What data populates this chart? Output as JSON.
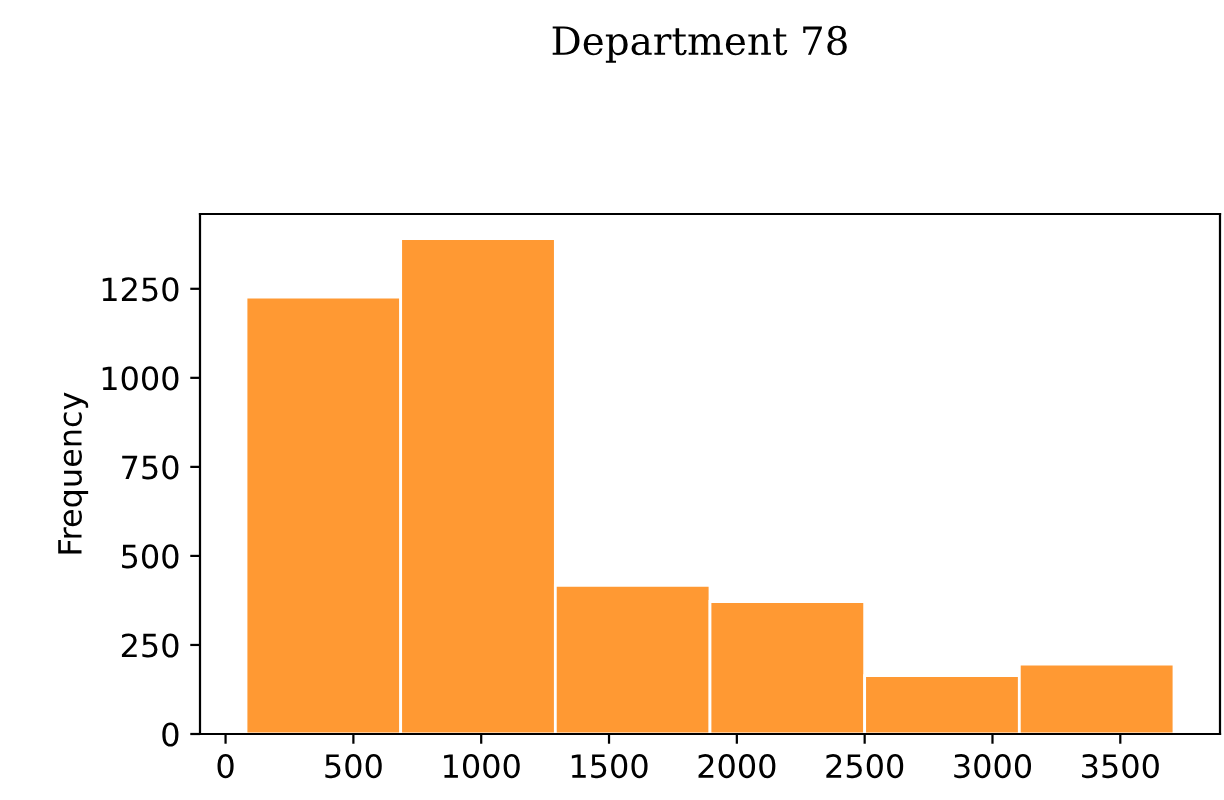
{
  "chart_data": {
    "type": "histogram",
    "title": "Department 78",
    "ylabel": "Frequency",
    "bins": [
      80,
      685,
      1290,
      1895,
      2500,
      3105,
      3710
    ],
    "values": [
      1227,
      1391,
      417,
      372,
      164,
      196
    ],
    "color": "#ff9933",
    "xlim": [
      -100,
      3890
    ],
    "ylim": [
      0,
      1460
    ],
    "xticks": [
      0,
      500,
      1000,
      1500,
      2000,
      2500,
      3000,
      3500
    ],
    "yticks": [
      0,
      250,
      500,
      750,
      1000,
      1250
    ],
    "grid": false
  }
}
